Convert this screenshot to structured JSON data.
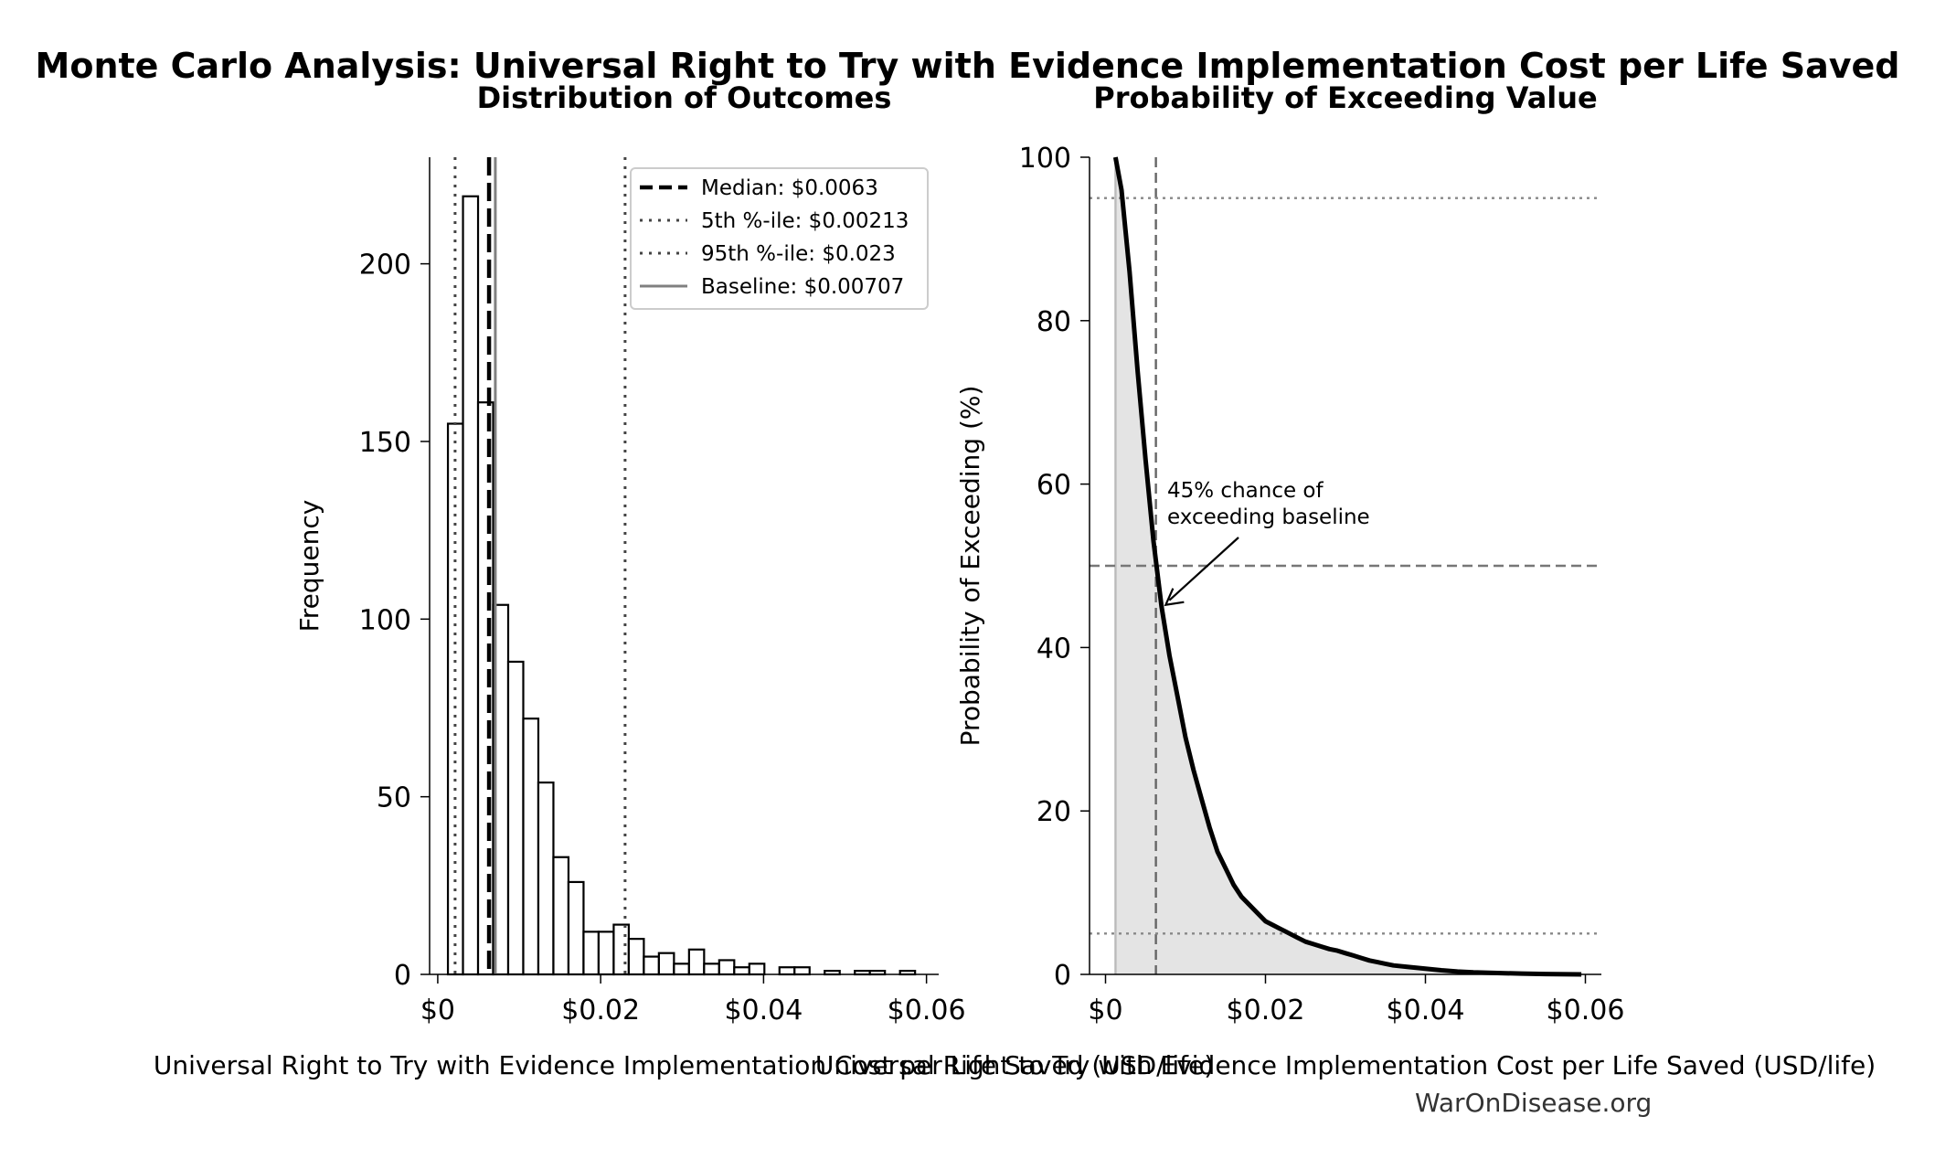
{
  "figure": {
    "suptitle": "Monte Carlo Analysis: Universal Right to Try with Evidence Implementation Cost per Life Saved",
    "footer": "WarOnDisease.org"
  },
  "chart_data": [
    {
      "type": "bar",
      "subtype": "histogram",
      "title": "Distribution of Outcomes",
      "xlabel": "Universal Right to Try with Evidence Implementation Cost per Life Saved (USD/life)",
      "ylabel": "Frequency",
      "xlim": [
        -0.001,
        0.0615
      ],
      "ylim": [
        0,
        230
      ],
      "xticks": [
        0,
        0.02,
        0.04,
        0.06
      ],
      "xtick_labels": [
        "$0",
        "$0.02",
        "$0.04",
        "$0.06"
      ],
      "yticks": [
        0,
        50,
        100,
        150,
        200
      ],
      "ytick_labels": [
        "0",
        "50",
        "100",
        "150",
        "200"
      ],
      "bin_width": 0.00185,
      "bin_start": 0.00125,
      "bin_counts": [
        155,
        219,
        161,
        104,
        88,
        72,
        54,
        33,
        26,
        12,
        12,
        14,
        10,
        5,
        6,
        3,
        7,
        3,
        4,
        2,
        3,
        0,
        2,
        2,
        0,
        1,
        0,
        1,
        1,
        0,
        1
      ],
      "reference_lines": [
        {
          "label": "Median: $0.0063",
          "value": 0.0063,
          "style": "dashed",
          "color": "#000000"
        },
        {
          "label": "5th %-ile: $0.00213",
          "value": 0.00213,
          "style": "dotted",
          "color": "#444444"
        },
        {
          "label": "95th %-ile: $0.023",
          "value": 0.023,
          "style": "dotted",
          "color": "#444444"
        },
        {
          "label": "Baseline: $0.00707",
          "value": 0.00707,
          "style": "solid",
          "color": "#808080"
        }
      ],
      "legend_position": "top-right",
      "grid": false
    },
    {
      "type": "line",
      "subtype": "exceedance curve",
      "title": "Probability of Exceeding Value",
      "xlabel": "Universal Right to Try with Evidence Implementation Cost per Life Saved (USD/life)",
      "ylabel": "Probability of Exceeding (%)",
      "xlim": [
        -0.002,
        0.062
      ],
      "ylim": [
        0,
        100
      ],
      "xticks": [
        0,
        0.02,
        0.04,
        0.06
      ],
      "xtick_labels": [
        "$0",
        "$0.02",
        "$0.04",
        "$0.06"
      ],
      "yticks": [
        0,
        20,
        40,
        60,
        80,
        100
      ],
      "ytick_labels": [
        "0",
        "20",
        "40",
        "60",
        "80",
        "100"
      ],
      "x": [
        0.00125,
        0.002,
        0.003,
        0.004,
        0.005,
        0.006,
        0.007,
        0.008,
        0.009,
        0.01,
        0.011,
        0.012,
        0.013,
        0.014,
        0.015,
        0.016,
        0.017,
        0.018,
        0.019,
        0.02,
        0.021,
        0.022,
        0.023,
        0.024,
        0.025,
        0.026,
        0.027,
        0.028,
        0.029,
        0.03,
        0.031,
        0.032,
        0.033,
        0.034,
        0.035,
        0.036,
        0.038,
        0.04,
        0.042,
        0.044,
        0.046,
        0.048,
        0.05,
        0.052,
        0.055,
        0.0595
      ],
      "y": [
        100,
        96,
        86,
        74,
        63,
        53,
        45,
        39,
        34,
        29,
        25,
        21.5,
        18,
        15,
        13,
        11,
        9.5,
        8.5,
        7.5,
        6.5,
        6,
        5.5,
        5,
        4.5,
        4,
        3.7,
        3.4,
        3.1,
        2.9,
        2.6,
        2.3,
        2,
        1.7,
        1.5,
        1.3,
        1.1,
        0.9,
        0.7,
        0.5,
        0.35,
        0.25,
        0.2,
        0.15,
        0.1,
        0.05,
        0
      ],
      "fill_under": true,
      "reference_lines": [
        {
          "orientation": "vertical",
          "value": 0.0063,
          "style": "dashed",
          "color": "#666666"
        },
        {
          "orientation": "vertical",
          "value": 0.00125,
          "style": "solid",
          "color": "#bbbbbb"
        },
        {
          "orientation": "horizontal",
          "value": 50,
          "style": "dashed",
          "color": "#777777"
        },
        {
          "orientation": "horizontal",
          "value": 95,
          "style": "dotted",
          "color": "#888888"
        },
        {
          "orientation": "horizontal",
          "value": 5,
          "style": "dotted",
          "color": "#888888"
        }
      ],
      "annotation": {
        "lines": [
          "45% chance of",
          "exceeding baseline"
        ],
        "x": 0.00707,
        "y": 45
      },
      "grid": false
    }
  ]
}
